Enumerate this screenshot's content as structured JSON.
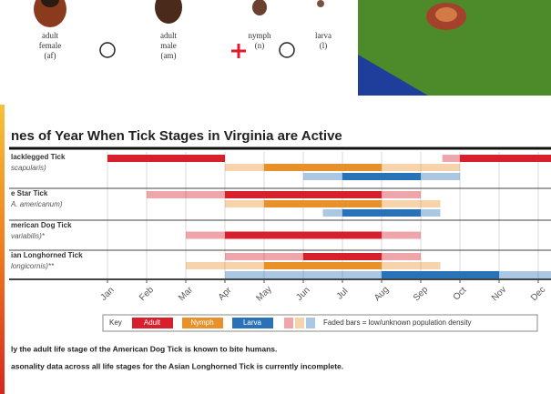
{
  "figures": [
    {
      "lines": [
        "adult",
        "female",
        "(af)"
      ]
    },
    {
      "lines": [
        "adult",
        "male",
        "(am)"
      ]
    },
    {
      "lines": [
        "nymph",
        "(n)"
      ]
    },
    {
      "lines": [
        "larva",
        "(l)"
      ]
    }
  ],
  "chart_data": {
    "type": "range-bar",
    "title": "nes of Year When Tick Stages in Virginia are Active",
    "xlim": [
      0,
      11.45
    ],
    "xticks": [
      {
        "value": 0,
        "label": "Jan"
      },
      {
        "value": 1,
        "label": "Feb"
      },
      {
        "value": 2,
        "label": "Mar"
      },
      {
        "value": 3,
        "label": "Apr"
      },
      {
        "value": 4,
        "label": "May"
      },
      {
        "value": 5,
        "label": "Jun"
      },
      {
        "value": 6,
        "label": "Jul"
      },
      {
        "value": 7,
        "label": "Aug"
      },
      {
        "value": 8,
        "label": "Sep"
      },
      {
        "value": 9,
        "label": "Oct"
      },
      {
        "value": 10,
        "label": "Nov"
      },
      {
        "value": 11,
        "label": "Dec"
      }
    ],
    "grid": true,
    "legend": {
      "title": "Key",
      "items": [
        {
          "name": "Adult",
          "color": "#d7202c"
        },
        {
          "name": "Nymph",
          "color": "#e8912a"
        },
        {
          "name": "Larva",
          "color": "#2a72b8"
        }
      ],
      "note": "Faded bars = low/unknown population density"
    },
    "rows": [
      {
        "name": "lacklegged Tick",
        "sub": "scapularis)",
        "tracks": [
          {
            "color": "#d7202c",
            "bars": [
              {
                "start": 0,
                "end": 3,
                "faded": false
              },
              {
                "start": 8.55,
                "end": 9,
                "faded": true
              },
              {
                "start": 9,
                "end": 11.45,
                "faded": false
              }
            ]
          },
          {
            "color": "#e8912a",
            "bars": [
              {
                "start": 3,
                "end": 4,
                "faded": true
              },
              {
                "start": 4,
                "end": 7,
                "faded": false
              },
              {
                "start": 7,
                "end": 9,
                "faded": true
              }
            ]
          },
          {
            "color": "#2a72b8",
            "bars": [
              {
                "start": 5,
                "end": 6,
                "faded": true
              },
              {
                "start": 6,
                "end": 8,
                "faded": false
              },
              {
                "start": 8,
                "end": 9,
                "faded": true
              }
            ]
          }
        ]
      },
      {
        "name": "e Star Tick",
        "sub": "A. americanum)",
        "tracks": [
          {
            "color": "#d7202c",
            "bars": [
              {
                "start": 1,
                "end": 3,
                "faded": true
              },
              {
                "start": 3,
                "end": 7,
                "faded": false
              },
              {
                "start": 7,
                "end": 8,
                "faded": true
              }
            ]
          },
          {
            "color": "#e8912a",
            "bars": [
              {
                "start": 3,
                "end": 4,
                "faded": true
              },
              {
                "start": 4,
                "end": 7,
                "faded": false
              },
              {
                "start": 7,
                "end": 8.5,
                "faded": true
              }
            ]
          },
          {
            "color": "#2a72b8",
            "bars": [
              {
                "start": 5.5,
                "end": 6,
                "faded": true
              },
              {
                "start": 6,
                "end": 8,
                "faded": false
              },
              {
                "start": 8,
                "end": 8.5,
                "faded": true
              }
            ]
          }
        ]
      },
      {
        "name": "merican Dog Tick",
        "sub": "variabilis)*",
        "tracks": [
          {
            "color": "#d7202c",
            "bars": [
              {
                "start": 2,
                "end": 3,
                "faded": true
              },
              {
                "start": 3,
                "end": 7,
                "faded": false
              },
              {
                "start": 7,
                "end": 8,
                "faded": true
              }
            ]
          }
        ]
      },
      {
        "name": "ian Longhorned Tick",
        "sub": "longicornis)**",
        "tracks": [
          {
            "color": "#d7202c",
            "bars": [
              {
                "start": 3,
                "end": 5,
                "faded": true
              },
              {
                "start": 5,
                "end": 7,
                "faded": false
              },
              {
                "start": 7,
                "end": 8,
                "faded": true
              }
            ]
          },
          {
            "color": "#e8912a",
            "bars": [
              {
                "start": 2,
                "end": 4,
                "faded": true
              },
              {
                "start": 4,
                "end": 7,
                "faded": false
              },
              {
                "start": 7,
                "end": 8.5,
                "faded": true
              }
            ]
          },
          {
            "color": "#2a72b8",
            "bars": [
              {
                "start": 3,
                "end": 7,
                "faded": true
              },
              {
                "start": 7,
                "end": 10,
                "faded": false
              },
              {
                "start": 10,
                "end": 11.45,
                "faded": true
              }
            ]
          }
        ]
      }
    ],
    "footnotes": [
      "ly the adult life stage of the American Dog Tick is known to bite humans.",
      "asonality data across all life stages for the Asian Longhorned Tick is currently incomplete."
    ]
  }
}
